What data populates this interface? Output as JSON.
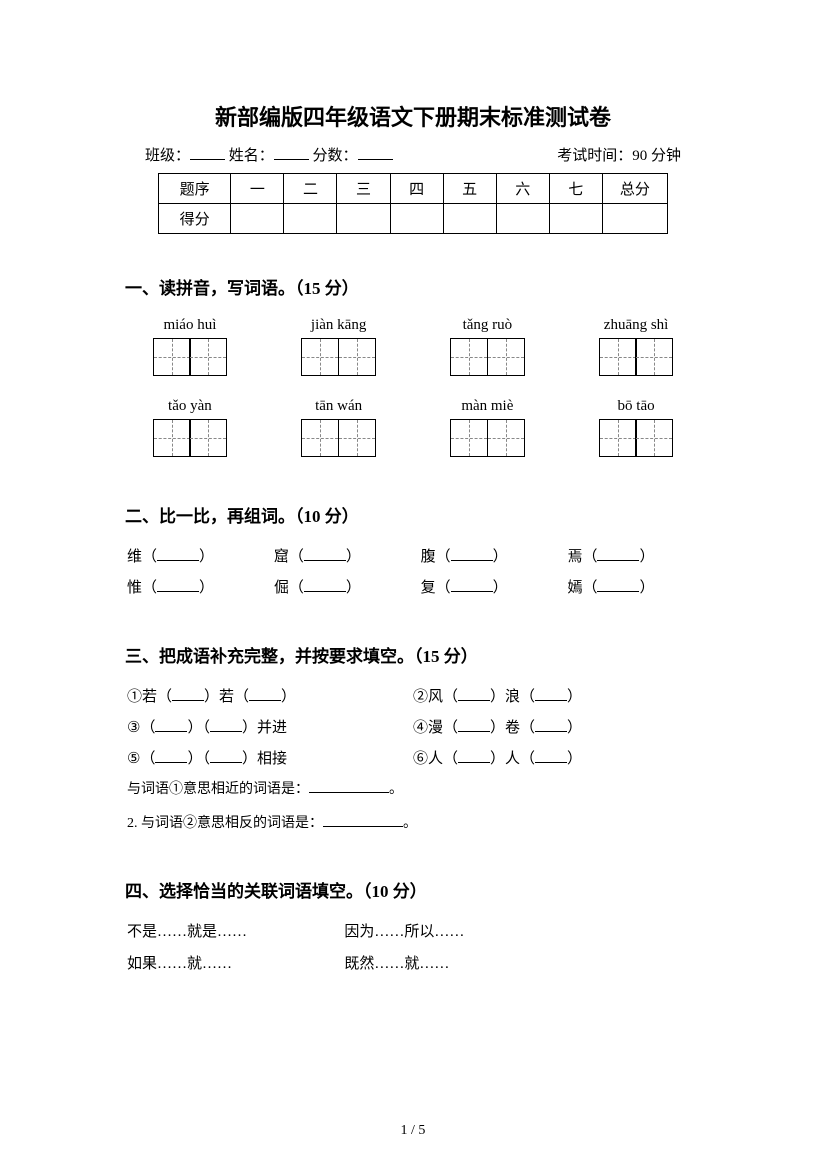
{
  "title": "新部编版四年级语文下册期末标准测试卷",
  "meta": {
    "class_label": "班级：",
    "name_label": "姓名：",
    "score_label": "分数：",
    "time_label": "考试时间：90 分钟"
  },
  "score_table": {
    "row1": [
      "题序",
      "一",
      "二",
      "三",
      "四",
      "五",
      "六",
      "七",
      "总分"
    ],
    "row2_label": "得分"
  },
  "section1": {
    "heading": "一、读拼音，写词语。（15 分）",
    "pinyin_row1": [
      "miáo huì",
      "jiàn kāng",
      "tǎng ruò",
      "zhuāng shì"
    ],
    "pinyin_row2": [
      "tǎo yàn",
      "tān wán",
      "màn miè",
      "bō tāo"
    ]
  },
  "section2": {
    "heading": "二、比一比，再组词。（10 分）",
    "row1": [
      "维",
      "窟",
      "腹",
      "焉"
    ],
    "row2": [
      "惟",
      "倔",
      "复",
      "嫣"
    ]
  },
  "section3": {
    "heading": "三、把成语补充完整，并按要求填空。（15 分）",
    "items": [
      {
        "num": "①",
        "parts": [
          "若（",
          "）若（",
          "）"
        ]
      },
      {
        "num": "②",
        "parts": [
          "风（",
          "）浪（",
          "）"
        ]
      },
      {
        "num": "③",
        "parts": [
          "（",
          "）（",
          "）并进"
        ]
      },
      {
        "num": "④",
        "parts": [
          "漫（",
          "）卷（",
          "）"
        ]
      },
      {
        "num": "⑤",
        "parts": [
          "（",
          "）（",
          "）相接"
        ]
      },
      {
        "num": "⑥",
        "parts": [
          "人（",
          "）人（",
          "）"
        ]
      }
    ],
    "note1": "与词语①意思相近的词语是：",
    "note2": "2. 与词语②意思相反的词语是：",
    "period": "。"
  },
  "section4": {
    "heading": "四、选择恰当的关联词语填空。（10 分）",
    "row1": [
      "不是……就是……",
      "因为……所以……"
    ],
    "row2": [
      "如果……就……",
      "既然……就……"
    ]
  },
  "page_number": "1 / 5"
}
